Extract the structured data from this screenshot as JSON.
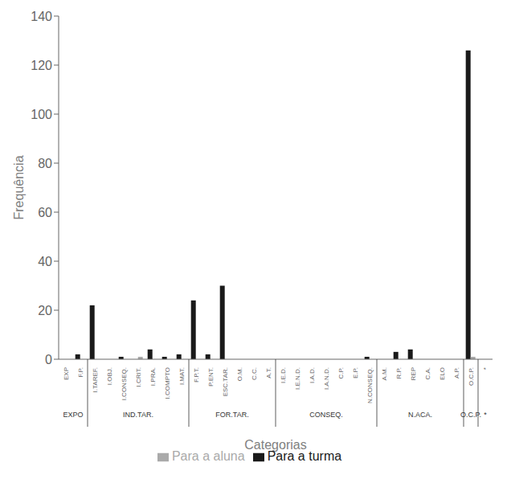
{
  "chart_data": {
    "type": "bar",
    "categories": [
      "EXP",
      "F.P.",
      "I.TAREF.",
      "I.OBJ.",
      "I.CONSEQ.",
      "I.CRIT.",
      "I.PRA.",
      "I.COMPTO",
      "I.MAT.",
      "F.P.T.",
      "P.ENT.",
      "ESC.TAR.",
      "O.M.",
      "C.C.",
      "A.T.",
      "I.E.D.",
      "I.E.N.D.",
      "I.A.D.",
      "I.A.N.D.",
      "C.P.",
      "E.P.",
      "N.CONSEQ.",
      "A.M.",
      "R.P.",
      "REP",
      "C.A.",
      "ELO",
      "A.P.",
      "O.C.P.",
      "*"
    ],
    "series": [
      {
        "name": "Para a turma",
        "color": "#1a1a1a",
        "values": [
          0,
          2,
          22,
          0,
          1,
          0,
          4,
          1,
          2,
          24,
          2,
          30,
          0,
          0,
          0,
          0,
          0,
          0,
          0,
          0,
          0,
          1,
          0,
          3,
          4,
          0,
          0,
          0,
          126,
          0
        ]
      },
      {
        "name": "Para a aluna",
        "color": "#aaaaaa",
        "values": [
          0,
          0,
          0,
          0,
          0,
          1,
          0,
          0,
          0,
          0,
          0,
          0,
          0,
          0,
          0,
          0,
          0,
          0,
          0,
          0,
          0,
          0,
          0,
          0,
          0,
          0,
          0,
          0,
          1,
          0
        ]
      }
    ],
    "groups": [
      {
        "label": "EXPO",
        "span": [
          0,
          1
        ]
      },
      {
        "label": "IND.TAR.",
        "span": [
          2,
          8
        ]
      },
      {
        "label": "FOR.TAR.",
        "span": [
          9,
          14
        ]
      },
      {
        "label": "CONSEQ.",
        "span": [
          15,
          21
        ]
      },
      {
        "label": "N.ACA.",
        "span": [
          22,
          27
        ]
      },
      {
        "label": "O.C.P.",
        "span": [
          28,
          28
        ]
      },
      {
        "label": "*",
        "span": [
          29,
          29
        ]
      }
    ],
    "xlabel": "Categorias",
    "ylabel": "Frequência",
    "ylim": [
      0,
      140
    ],
    "yticks": [
      0,
      20,
      40,
      60,
      80,
      100,
      120,
      140
    ],
    "grid": false,
    "legend": "bottom"
  }
}
